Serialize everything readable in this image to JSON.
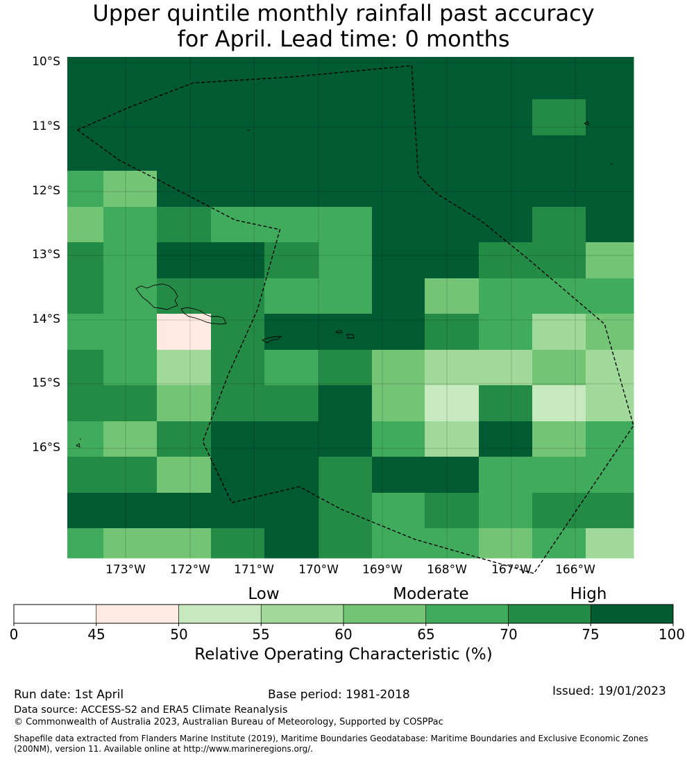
{
  "title": {
    "line1": "Upper quintile monthly rainfall past accuracy",
    "line2": "for April. Lead time: 0 months"
  },
  "map": {
    "lat_labels": [
      "10°S",
      "11°S",
      "12°S",
      "13°S",
      "14°S",
      "15°S",
      "16°S"
    ],
    "lon_labels": [
      "173°W",
      "172°W",
      "171°W",
      "170°W",
      "169°W",
      "168°W",
      "167°W",
      "166°W"
    ],
    "grid_levels": [
      [
        8,
        8,
        8,
        8,
        8,
        8,
        8,
        8,
        8,
        8,
        8
      ],
      [
        8,
        8,
        8,
        8,
        8,
        8,
        8,
        8,
        8,
        7,
        8
      ],
      [
        8,
        8,
        8,
        8,
        8,
        8,
        8,
        8,
        8,
        8,
        8
      ],
      [
        6,
        5,
        8,
        8,
        8,
        8,
        8,
        8,
        8,
        8,
        8
      ],
      [
        5,
        6,
        7,
        6,
        6,
        6,
        8,
        8,
        8,
        7,
        8
      ],
      [
        7,
        6,
        8,
        8,
        7,
        6,
        8,
        8,
        7,
        7,
        5
      ],
      [
        7,
        6,
        7,
        7,
        6,
        6,
        8,
        5,
        6,
        6,
        6
      ],
      [
        6,
        6,
        2,
        7,
        8,
        8,
        8,
        7,
        6,
        4,
        5
      ],
      [
        7,
        6,
        4,
        7,
        6,
        7,
        5,
        4,
        4,
        5,
        4
      ],
      [
        7,
        7,
        5,
        7,
        7,
        8,
        5,
        3,
        7,
        3,
        4
      ],
      [
        6,
        5,
        7,
        8,
        8,
        8,
        6,
        4,
        8,
        5,
        6
      ],
      [
        7,
        7,
        5,
        8,
        8,
        7,
        8,
        8,
        6,
        6,
        6
      ],
      [
        8,
        8,
        8,
        8,
        8,
        7,
        6,
        7,
        6,
        7,
        7
      ],
      [
        6,
        5,
        5,
        7,
        8,
        7,
        6,
        6,
        5,
        6,
        4
      ]
    ],
    "eez_boundary_lonlat": [
      [
        -173.75,
        -11.05
      ],
      [
        -172.95,
        -10.7
      ],
      [
        -171.95,
        -10.32
      ],
      [
        -170.35,
        -10.22
      ],
      [
        -168.55,
        -10.05
      ],
      [
        -168.45,
        -11.75
      ],
      [
        -168.15,
        -12.05
      ],
      [
        -167.45,
        -12.48
      ],
      [
        -166.75,
        -13.05
      ],
      [
        -165.55,
        -14.07
      ],
      [
        -165.1,
        -15.65
      ],
      [
        -166.65,
        -17.95
      ],
      [
        -168.5,
        -17.42
      ],
      [
        -169.65,
        -16.95
      ],
      [
        -170.3,
        -16.6
      ],
      [
        -171.35,
        -16.85
      ],
      [
        -171.8,
        -15.9
      ],
      [
        -171.4,
        -14.85
      ],
      [
        -170.95,
        -13.85
      ],
      [
        -170.6,
        -12.6
      ],
      [
        -171.3,
        -12.45
      ],
      [
        -172.45,
        -11.85
      ],
      [
        -173.1,
        -11.52
      ],
      [
        -173.75,
        -11.05
      ]
    ]
  },
  "colorbar": {
    "categories": [
      "Low",
      "Moderate",
      "High"
    ],
    "ticks": [
      "0",
      "45",
      "50",
      "55",
      "60",
      "65",
      "70",
      "75",
      "100"
    ],
    "colors": [
      "#ffffff",
      "#feeae0",
      "#c7e9c0",
      "#a1d99b",
      "#74c476",
      "#41ab5d",
      "#238b45",
      "#005a32"
    ],
    "label": "Relative Operating Characteristic (%)"
  },
  "footer": {
    "run_date": "Run date: 1st April",
    "base_period": "Base period: 1981-2018",
    "issued": "Issued: 19/01/2023",
    "data_source": "Data source: ACCESS-S2 and ERA5 Climate Reanalysis",
    "copyright": "© Commonwealth of Australia 2023, Australian Bureau of Meteorology, Supported by COSPPac",
    "shapefile_line1": "Shapefile data extracted from Flanders Marine Institute (2019), Maritime Boundaries Geodatabase: Maritime Boundaries and Exclusive Economic Zones",
    "shapefile_line2": "(200NM), version 11. Available online at http://www.marineregions.org/."
  }
}
